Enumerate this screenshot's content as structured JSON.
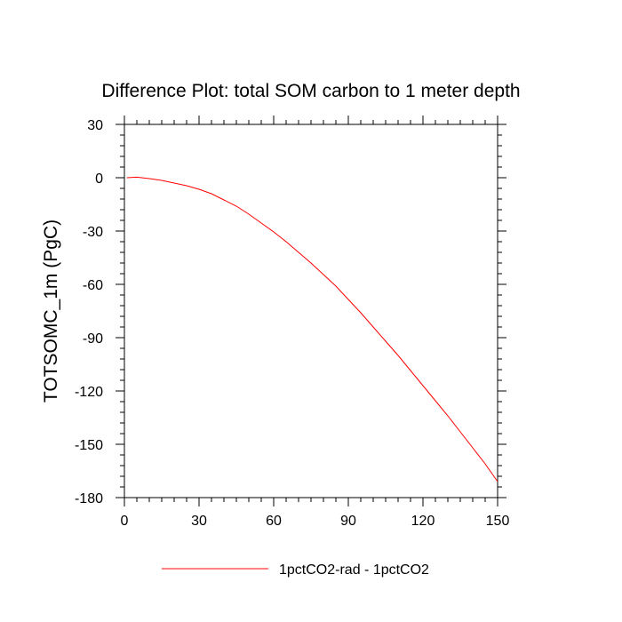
{
  "chart_data": {
    "type": "line",
    "title": "Difference Plot: total SOM carbon to 1 meter depth",
    "xlabel": "",
    "ylabel": "TOTSOMC_1m  (PgC)",
    "xlim": [
      0,
      150
    ],
    "ylim": [
      -180,
      30
    ],
    "xticks": [
      0,
      30,
      60,
      90,
      120,
      150
    ],
    "yticks": [
      30,
      0,
      -30,
      -60,
      -90,
      -120,
      -150,
      -180
    ],
    "grid": false,
    "legend_position": "bottom",
    "series": [
      {
        "name": "1pctCO2-rad - 1pctCO2",
        "color": "#ff0000",
        "x": [
          1,
          5,
          10,
          15,
          20,
          25,
          30,
          35,
          40,
          45,
          50,
          55,
          60,
          65,
          70,
          75,
          80,
          85,
          90,
          95,
          100,
          105,
          110,
          115,
          120,
          125,
          130,
          135,
          140,
          145,
          150
        ],
        "y": [
          0,
          0.3,
          -0.5,
          -1.5,
          -3,
          -4.5,
          -6.5,
          -9,
          -12.5,
          -16,
          -20.5,
          -25.5,
          -30.5,
          -36,
          -42,
          -48,
          -54.5,
          -61,
          -68.5,
          -76,
          -84,
          -92,
          -100,
          -108.5,
          -117,
          -125.5,
          -134,
          -143,
          -152,
          -161,
          -171
        ]
      }
    ]
  }
}
